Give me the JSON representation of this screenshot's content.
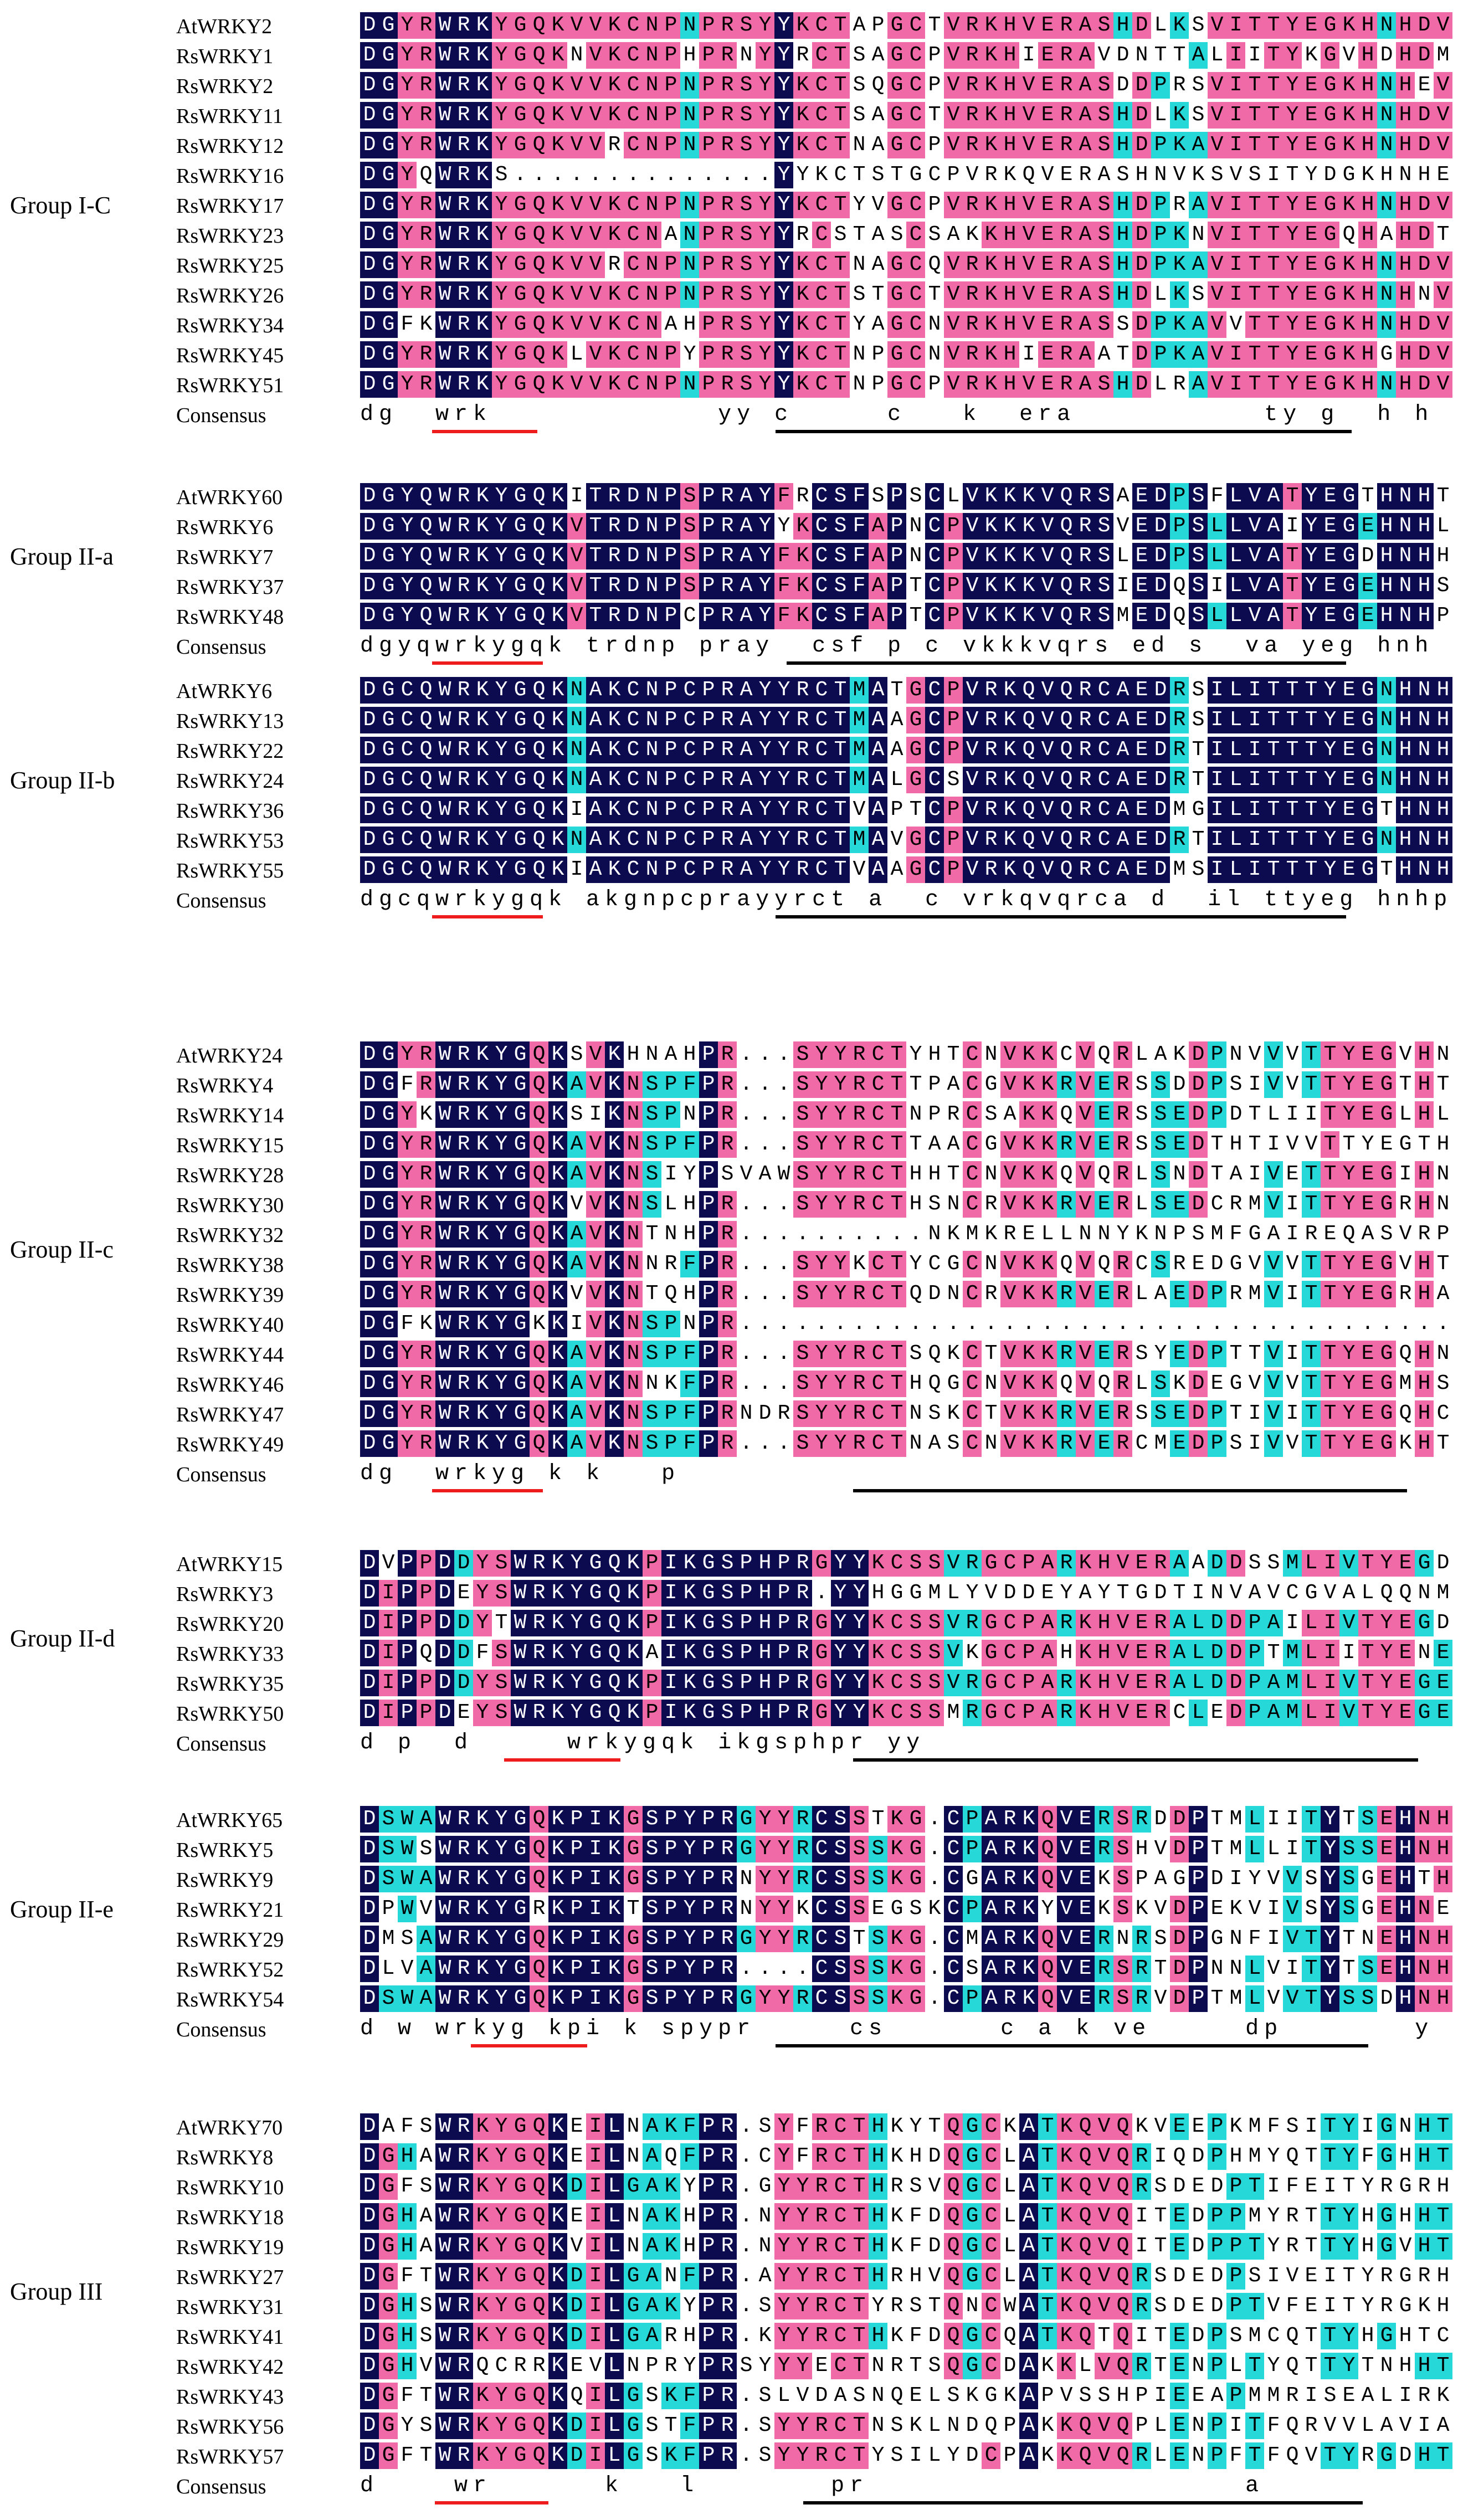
{
  "colors": {
    "identical": "#0d0b4f",
    "high": "#f06aa8",
    "medium": "#27d8d8",
    "low": "#ffffff",
    "wrky_underline": "#ee1c1c",
    "zinc_underline": "#000000"
  },
  "groups": [
    {
      "label": "Group I-C",
      "block": [
        16,
        236
      ],
      "highlight": [
        [
          0,
          15
        ],
        [
          14,
          40
        ]
      ],
      "consensus": "dg  wrk            yy c     c   k  era          ty g  h h   p",
      "sequences": [
        {
          "name": "AtWRKY2",
          "seq": "DGYRWRKYGQKVVKCNPNPRSYYKCTAPGCTVRKHVERASHDLKSVITTYEGKHNHDVP"
        },
        {
          "name": "RsWRKY1",
          "seq": "DGYRWRKYGQKNVKCNPHPRNYYRCTSAGCPVRKHIERAVDNTTALIITYKGVHDHDMP"
        },
        {
          "name": "RsWRKY2",
          "seq": "DGYRWRKYGQKVVKCNPNPRSYYKCTSQGCPVRKHVERASDDPRSVITTYEGKHNHEVP"
        },
        {
          "name": "RsWRKY11",
          "seq": "DGYRWRKYGQKVVKCNPNPRSYYKCTSAGCTVRKHVERASHDLKSVITTYEGKHNHDVP"
        },
        {
          "name": "RsWRKY12",
          "seq": "DGYRWRKYGQKVVRCNPNPRSYYKCTNAGCPVRKHVERASHDPKAVITTYEGKHNHDVP"
        },
        {
          "name": "RsWRKY16",
          "seq": "DGYQWRKS..............YYKCTSTGCPVRKQVERASHNVKSVSITYDGKHNHEVP"
        },
        {
          "name": "RsWRKY17",
          "seq": "DGYRWRKYGQKVVKCNPNPRSYYKCTYVGCPVRKHVERASHDPRAVITTYEGKHNHDVP"
        },
        {
          "name": "RsWRKY23",
          "seq": "DGYRWRKYGQKVVKCNANPRSYYRCSTASCSAKKHVERASHDPKNVITTYEGQHAHDTP"
        },
        {
          "name": "RsWRKY25",
          "seq": "DGYRWRKYGQKVVRCNPNPRSYYKCTNAGCQVRKHVERASHDPKAVITTYEGKHNHDVP"
        },
        {
          "name": "RsWRKY26",
          "seq": "DGYRWRKYGQKVVKCNPNPRSYYKCTSTGCTVRKHVERASHDLKSVITTYEGKHNHNVP"
        },
        {
          "name": "RsWRKY34",
          "seq": "DGFKWRKYGQKVVKCNAHPRSYYKCTYAGCNVRKHVERASSDPKAVVTTYEGKHNHDVP"
        },
        {
          "name": "RsWRKY45",
          "seq": "DGYRWRKYGQKLVKCNPYPRSYYKCTNPGCNVRKHIERAATDPKAVITTYEGKHGHDVP"
        },
        {
          "name": "RsWRKY51",
          "seq": "DGYRWRKYGQKVVKCNPNPRSYYKCTNPGCPVRKHVERASHDLRAVITTYEGKHNHDVP"
        }
      ]
    },
    {
      "label": "Group II-a",
      "block": [
        851,
        176
      ],
      "highlight": [
        [
          3,
          14
        ],
        [
          20,
          41
        ]
      ],
      "consensus": "dgyqwrkygqk trdnp pray  csf p c vkkkvqrs ed s  va yeg hnh  p",
      "sequences": [
        {
          "name": "AtWRKY60",
          "seq": "DGYQWRKYGQKITRDNPSPRAYFRCSFSPSCLVKKKVQRSAEDPSFLVATYEGTHNHTGP"
        },
        {
          "name": "RsWRKY6",
          "seq": "DGYQWRKYGQKVTRDNPSPRAYYKCSFAPNCPVKKKVQRSVEDPSLLVAIYEGEHNHLQP"
        },
        {
          "name": "RsWRKY7",
          "seq": "DGYQWRKYGQKVTRDNPSPRAYFKCSFAPNCPVKKKVQRSLEDPSLLVATYEGDHNHHHP"
        },
        {
          "name": "RsWRKY37",
          "seq": "DGYQWRKYGQKVTRDNPSPRAYFKCSFAPTCPVKKKVQRSIEDQSILVATYEGEHNHSHP"
        },
        {
          "name": "RsWRKY48",
          "seq": "DGYQWRKYGQKVTRDNPCPRAYFKCSFAPTCPVKKKVQRSMEDQSLLVATYEGEHNHPLP"
        }
      ]
    },
    {
      "label": "Group II-b",
      "block": [
        1202,
        148
      ],
      "highlight": [
        [
          3,
          14
        ],
        [
          19,
          41
        ]
      ],
      "consensus": "dgcqwrkygqk akgnpcprayyrct a  c vrkqvqrca d  il ttyeg hnhpl p",
      "sequences": [
        {
          "name": "AtWRKY6",
          "seq": "DGCQWRKYGQKNAKCNPCPRAYYRCTMATGCPVRKQVQRCAEDRSILITTTYEGNHNHPLP"
        },
        {
          "name": "RsWRKY13",
          "seq": "DGCQWRKYGQKNAKCNPCPRAYYRCTMAAGCPVRKQVQRCAEDRSILITTTYEGNHNHPLP"
        },
        {
          "name": "RsWRKY22",
          "seq": "DGCQWRKYGQKNAKCNPCPRAYYRCTMAAGCPVRKQVQRCAEDRTILITTTYEGNHNHPLP"
        },
        {
          "name": "RsWRKY24",
          "seq": "DGCQWRKYGQKNAKCNPCPRAYYRCTMALGCSVRKQVQRCAEDRTILITTTYEGNHNHPLP"
        },
        {
          "name": "RsWRKY36",
          "seq": "DGCQWRKYGQKIAKCNPCPRAYYRCTVAPTCPVRKQVQRCAEDMGILITTTYEGTHNHPLP"
        },
        {
          "name": "RsWRKY53",
          "seq": "DGCQWRKYGQKNAKCNPCPRAYYRCTMAVGCPVRKQVQRCAEDRTILITTTYEGNHNHPLP"
        },
        {
          "name": "RsWRKY55",
          "seq": "DGCQWRKYGQKIAKCNPCPRAYYRCTVAAGCPVRKQVQRCAEDMSILITTTYEGTHNHPLP"
        }
      ]
    },
    {
      "label": "Group II-c",
      "block": [
        1880,
        272
      ],
      "highlight": [
        [
          3,
          13
        ],
        [
          19,
          41
        ]
      ],
      "consensus": "dg  wrkyg k k   p",
      "sequences": [
        {
          "name": "AtWRKY24",
          "seq": "DGYRWRKYGQKSVKHNAHPR...SYYRCTYHTCNVKKCVQRLAKDPNVVVTTYEGVHNHP"
        },
        {
          "name": "RsWRKY4",
          "seq": "DGFRWRKYGQKAVKNSPFPR...SYYRCTTPACGVKKRVERSSDDPSIVVTTYEGTHTHP"
        },
        {
          "name": "RsWRKY14",
          "seq": "DGYKWRKYGQKSIKNSPNPR...SYYRCTNPRCSAKKQVERSSEDPDTLIITYEGLHLHF"
        },
        {
          "name": "RsWRKY15",
          "seq": "DGYRWRKYGQKAVKNSPFPR...SYYRCTTAACGVKKRVERSSEDTHTIVVTTYEGTHTHP"
        },
        {
          "name": "RsWRKY28",
          "seq": "DGYRWRKYGQKAVKNSIYPSVAWSYYRCTHHTCNVKKQVQRLSNDTAIVETTYEGIHNHP"
        },
        {
          "name": "RsWRKY30",
          "seq": "DGYRWRKYGQKVVKNSLHPR...SYYRCTHSNCRVKKRVERLSEDCRMVITTYEGRHNHT"
        },
        {
          "name": "RsWRKY32",
          "seq": "DGYRWRKYGQKAVKNTNHPR..........NKMKRELLNNYKNPSMFGAIREQASVRP"
        },
        {
          "name": "RsWRKY38",
          "seq": "DGYRWRKYGQKAVKNNRFPR...SYYKCTYCGCNVKKQVQRCSREDGVVVTTYEGVHTHP"
        },
        {
          "name": "RsWRKY39",
          "seq": "DGYRWRKYGQKVVKNTQHPR...SYYRCTQDNCRVKKRVERLAEDPRMVITTYEGRHAHS"
        },
        {
          "name": "RsWRKY40",
          "seq": "DGFKWRKYGKKIVKNSPNPR..........................................."
        },
        {
          "name": "RsWRKY44",
          "seq": "DGYRWRKYGQKAVKNSPFPR...SYYRCTSQKCTVKKRVERSYEDPTTVITTYEGQHNHH"
        },
        {
          "name": "RsWRKY46",
          "seq": "DGYRWRKYGQKAVKNNKFPR...SYYRCTHQGCNVKKQVQRLSKDEGVVVTTYEGMHSHP"
        },
        {
          "name": "RsWRKY47",
          "seq": "DGYRWRKYGQKAVKNSPFPRNDRSYYRCTNSKCTVKKRVERSSEDPTIVITTYEGQHCHH"
        },
        {
          "name": "RsWRKY49",
          "seq": "DGYRWRKYGQKAVKNSPFPR...SYYRCTNASCNVKKRVERCMEDPSIVVTTYEGKHTHH"
        }
      ]
    },
    {
      "label": "Group II-d",
      "block": [
        2847,
        176
      ],
      "highlight": [
        [
          3,
          14
        ],
        [
          20,
          42
        ]
      ],
      "consensus": "d p  d     wrkygqk ikgsphpr yy",
      "sequences": [
        {
          "name": "AtWRKY15",
          "seq": "DVPPDDYSWRKYGQKPIKGSPHPRGYYKCSSVRGCPARKHVERAADDSSMLIVTYEGDHNH"
        },
        {
          "name": "RsWRKY3",
          "seq": "DIPPDEYSWRKYGQKPIKGSPHPR.YYHGGMLYVDDEYAYTGDTINVAVCGVALQQNMWR"
        },
        {
          "name": "RsWRKY20",
          "seq": "DIPPDDYTWRKYGQKPIKGSPHPRGYYKCSSVRGCPARKHVERALDDPAILIVTYEGDHNH"
        },
        {
          "name": "RsWRKY33",
          "seq": "DIPQDDFSWRKYGQKAIKGSPHPRGYYKCSSVKGCPAHKHVERALDDPTMLIITYENEHNH"
        },
        {
          "name": "RsWRKY35",
          "seq": "DIPPDDYSWRKYGQKPIKGSPHPRGYYKCSSVRGCPARKHVERALDDPAMLIVTYEGEHNH"
        },
        {
          "name": "RsWRKY50",
          "seq": "DIPPDEYSWRKYGQKPIKGSPHPRGYYKCSSMRGCPARKHVERCLEDPAMLIVTYEGEHNH"
        }
      ]
    },
    {
      "label": "Group II-e",
      "block": [
        3250,
        176
      ],
      "highlight": [
        [
          2,
          16
        ],
        [
          18,
          41
        ]
      ],
      "consensus": "d w wrkyg kpi k spypr     cs      c a k ve     dp       y   h h  p",
      "sequences": [
        {
          "name": "AtWRKY65",
          "seq": "DSWAWRKYGQKPIKGSPYPRGYYRCSSTKG.CPARKQVERSRDDPTMLIITYTSEHNHPWPI"
        },
        {
          "name": "RsWRKY5",
          "seq": "DSWSWRKYGQKPIKGSPYPRGYYRCSSSKG.CPARKQVERSHVDPTMLLITYSSEHNHPWP"
        },
        {
          "name": "RsWRKY9",
          "seq": "DSWAWRKYGQKPIKGSPYPRNYYRCSSSKG.CGARKQVEKSPAGPDIYVVSYSGEHTHPRP"
        },
        {
          "name": "RsWRKY21",
          "seq": "DPWVWRKYGRKPIKTSPYPRNYYKCSSEGSKCPARKYVEKSKVDPEKVIVSYSGEHNESPPI"
        },
        {
          "name": "RsWRKY29",
          "seq": "DMSAWRKYGQKPIKGSPYPRGYYRCSTSKG.CMARKQVERNRSDPGNFIVTYTNEHNHPIP"
        },
        {
          "name": "RsWRKY52",
          "seq": "DLVAWRKYGQKPIKGSPYPR....CSSSKG.CSARKQVERSRTDPNNLVITYTSEHNHPWP"
        },
        {
          "name": "RsWRKY54",
          "seq": "DSWAWRKYGQKPIKGSPYPRGYYRCSSSKG.CPARKQVERSRVDPTMLVVTYSSDHNHPPA"
        }
      ]
    },
    {
      "label": "Group III",
      "block": [
        3815,
        428
      ],
      "highlight": [
        [
          2,
          12
        ],
        [
          14,
          41
        ]
      ],
      "consensus": "d    wr      k   l       pr                    a",
      "sequences": [
        {
          "name": "AtWRKY70",
          "seq": "DAFSWRKYGQKEILNAKFPR.SYFRCTHKYTQGCKATKQVQKVEEPKMFSITYIGNHTCNT"
        },
        {
          "name": "RsWRKY8",
          "seq": "DGHAWRKYGQKEILNAQFPR.CYFRCTHKHDQGCLATKQVQRIQDPHMYQTTYFGHHTCRP"
        },
        {
          "name": "RsWRKY10",
          "seq": "DGFSWRKYGQKDILGAKYPR.GYYRCTHRSVQGCLATKQVQRSDEDPTIFEITYRGRHTCTS"
        },
        {
          "name": "RsWRKY18",
          "seq": "DGHAWRKYGQKEILNAKHPR.NYYRCTHKFDQGCLATKQVQITEDPPMYRTTYHGHHTCQN"
        },
        {
          "name": "RsWRKY19",
          "seq": "DGHAWRKYGQKVILNAKHPR.NYYRCTHKFDQGCLATKQVQITEDPPTYRTTYHGVHTCQN"
        },
        {
          "name": "RsWRKY27",
          "seq": "DGFTWRKYGQKDILGANFPR.AYYRCTHRHVQGCLATKQVQRSDEDPSIVEITYRGRHTCIQ"
        },
        {
          "name": "RsWRKY31",
          "seq": "DGHSWRKYGQKDILGAKYPR.SYYRCTYRSTQNCWATKQVQRSDEDPTVFEITYRGKHTCSQ"
        },
        {
          "name": "RsWRKY41",
          "seq": "DGHSWRKYGQKDILGARHPR.KYYRCTHKFDQGCQATKQTQITEDPSMCQTTYHGHTCKN"
        },
        {
          "name": "RsWRKY42",
          "seq": "DGHVWRQCRRKEVLNPRYPRSYYYECTNRTSQGCDAKKLVQRTENPLTYQTTYTNHHTCNN"
        },
        {
          "name": "RsWRKY43",
          "seq": "DGFTWRKYGQKQILGSKFPR.SLVDASNQELSKGKAPVSSHPIEEAPMMRISEALIRKKEI"
        },
        {
          "name": "RsWRKY56",
          "seq": "DGYSWRKYGQKDILGSTFPR.SYYRCTNSKLNDQPAKKQVQPLENPITFQRVVLAVIAVTS"
        },
        {
          "name": "RsWRKY57",
          "seq": "DGFTWRKYGQKDILGSKFPR.SYYRCTYSILYDCPAKKQVQRLENPFTFQVTYRGDHTCQM"
        }
      ]
    }
  ]
}
